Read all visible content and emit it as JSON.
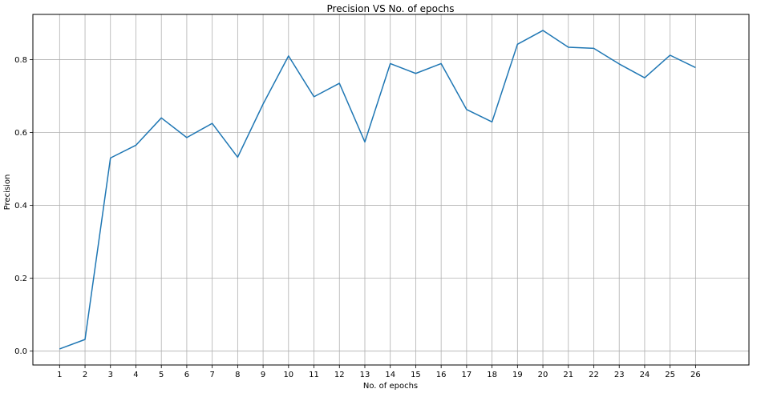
{
  "chart_data": {
    "type": "line",
    "title": "Precision VS No. of epochs",
    "xlabel": "No. of epochs",
    "ylabel": "Precision",
    "x": [
      1,
      2,
      3,
      4,
      5,
      6,
      7,
      8,
      9,
      10,
      11,
      12,
      13,
      14,
      15,
      16,
      17,
      18,
      19,
      20,
      21,
      22,
      23,
      24,
      25,
      26
    ],
    "xticks": [
      "1",
      "2",
      "3",
      "4",
      "5",
      "6",
      "7",
      "8",
      "9",
      "10",
      "11",
      "12",
      "13",
      "14",
      "15",
      "16",
      "17",
      "18",
      "19",
      "20",
      "21",
      "22",
      "23",
      "24",
      "25",
      "26"
    ],
    "yticks": [
      "0.0",
      "0.2",
      "0.4",
      "0.6",
      "0.8"
    ],
    "ytick_values": [
      0.0,
      0.2,
      0.4,
      0.6,
      0.8
    ],
    "xlim": [
      -0.05,
      28.1
    ],
    "ylim": [
      -0.038,
      0.924
    ],
    "grid": true,
    "series": [
      {
        "color": "#1f77b4",
        "values": [
          0.006,
          0.032,
          0.53,
          0.565,
          0.64,
          0.586,
          0.625,
          0.532,
          0.678,
          0.81,
          0.698,
          0.735,
          0.574,
          0.789,
          0.762,
          0.789,
          0.663,
          0.629,
          0.842,
          0.88,
          0.834,
          0.831,
          0.788,
          0.75,
          0.812,
          0.778
        ]
      }
    ]
  }
}
